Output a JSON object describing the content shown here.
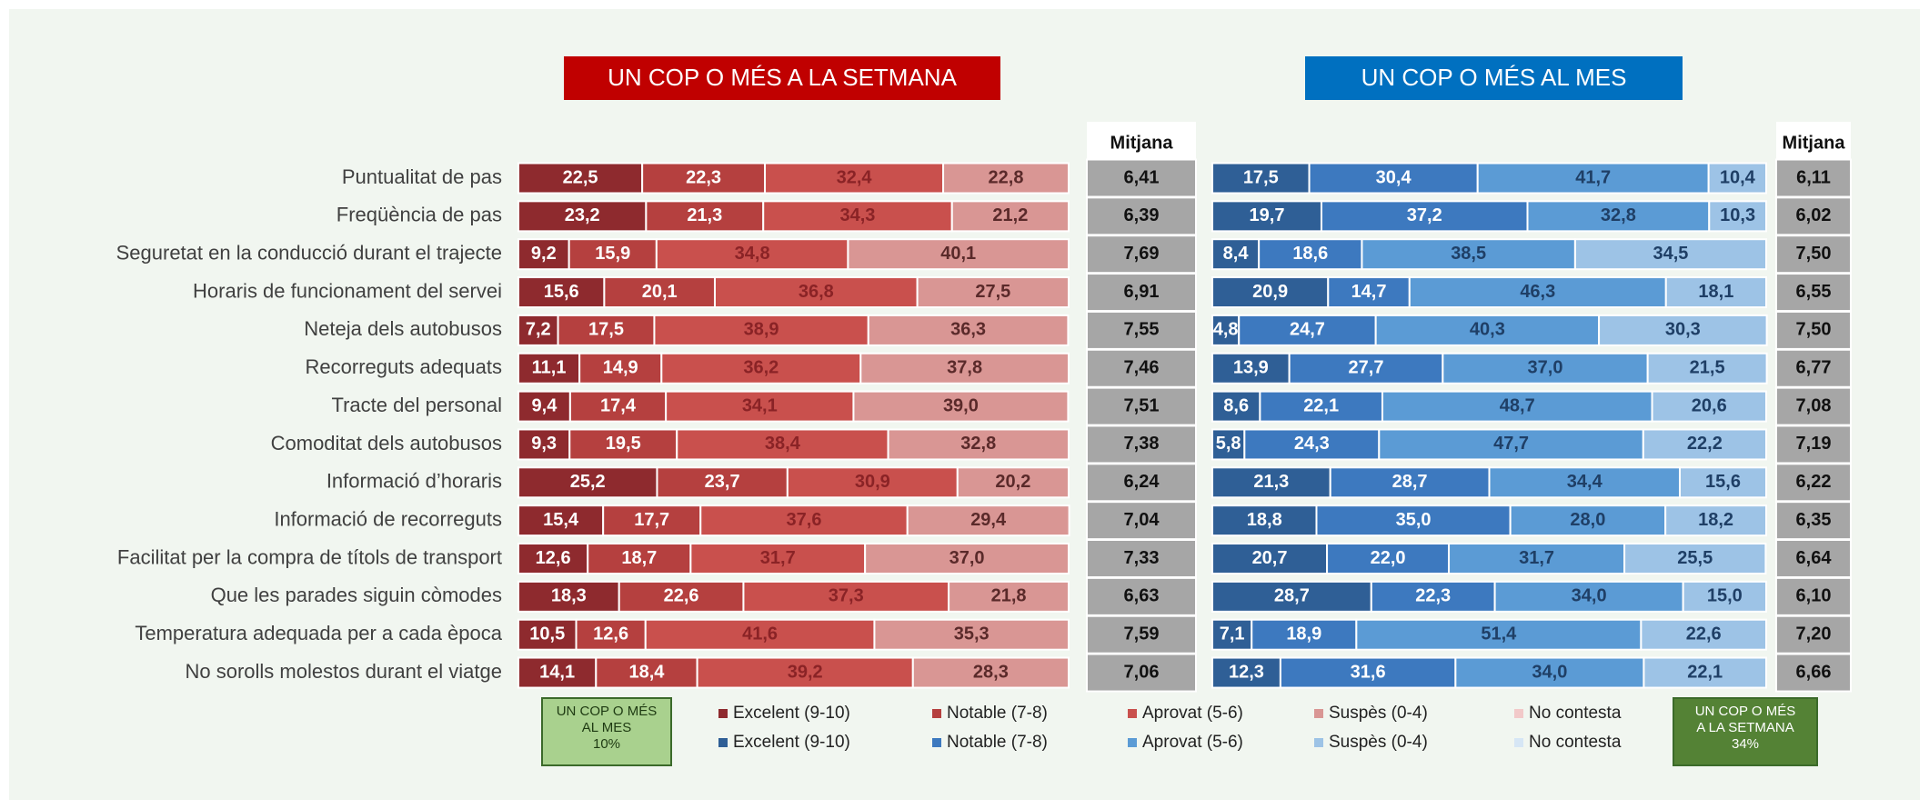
{
  "chart_data": [
    {
      "type": "stacked_bar_h",
      "title": "UN COP O MÉS A LA SETMANA",
      "title_color": "#c00000",
      "categories": [
        "Puntualitat de pas",
        "Freqüència de pas",
        "Seguretat en la conducció durant el trajecte",
        "Horaris de funcionament del servei",
        "Neteja dels autobusos",
        "Recorreguts adequats",
        "Tracte del personal",
        "Comoditat dels autobusos",
        "Informació d’horaris",
        "Informació de recorreguts",
        "Facilitat per la compra de títols de transport",
        "Que les parades siguin còmodes",
        "Temperatura adequada per a cada època",
        "No sorolls molestos durant el viatge"
      ],
      "xlim": [
        0,
        100
      ],
      "series": [
        {
          "name": "Excelent (9-10)",
          "color": "#8e2a2e",
          "label_color": "#ffffff",
          "values": [
            22.5,
            23.2,
            9.2,
            15.6,
            7.2,
            11.1,
            9.4,
            9.3,
            25.2,
            15.4,
            12.6,
            18.3,
            10.5,
            14.1
          ],
          "value_labels": [
            "22,5",
            "23,2",
            "9,2",
            "15,6",
            "7,2",
            "11,1",
            "9,4",
            "9,3",
            "25,2",
            "15,4",
            "12,6",
            "18,3",
            "10,5",
            "14,1"
          ]
        },
        {
          "name": "Notable (7-8)",
          "color": "#b5403f",
          "label_color": "#ffffff",
          "values": [
            22.3,
            21.3,
            15.9,
            20.1,
            17.5,
            14.9,
            17.4,
            19.5,
            23.7,
            17.7,
            18.7,
            22.6,
            12.6,
            18.4
          ],
          "value_labels": [
            "22,3",
            "21,3",
            "15,9",
            "20,1",
            "17,5",
            "14,9",
            "17,4",
            "19,5",
            "23,7",
            "17,7",
            "18,7",
            "22,6",
            "12,6",
            "18,4"
          ]
        },
        {
          "name": "Aprovat (5-6)",
          "color": "#c9504d",
          "label_color": "#8a2326",
          "values": [
            32.4,
            34.3,
            34.8,
            36.8,
            38.9,
            36.2,
            34.1,
            38.4,
            30.9,
            37.6,
            31.7,
            37.3,
            41.6,
            39.2
          ],
          "value_labels": [
            "32,4",
            "34,3",
            "34,8",
            "36,8",
            "38,9",
            "36,2",
            "34,1",
            "38,4",
            "30,9",
            "37,6",
            "31,7",
            "37,3",
            "41,6",
            "39,2"
          ]
        },
        {
          "name": "Suspès (0-4)",
          "color": "#d99694",
          "label_color": "#5a2a2a",
          "values": [
            22.8,
            21.2,
            40.1,
            27.5,
            36.3,
            37.8,
            39.0,
            32.8,
            20.2,
            29.4,
            37.0,
            21.8,
            35.3,
            28.3
          ],
          "value_labels": [
            "22,8",
            "21,2",
            "40,1",
            "27,5",
            "36,3",
            "37,8",
            "39,0",
            "32,8",
            "20,2",
            "29,4",
            "37,0",
            "21,8",
            "35,3",
            "28,3"
          ]
        },
        {
          "name": "No contesta",
          "color": "#f2c9c9",
          "label_color": "#5a2a2a",
          "values": [
            0,
            0,
            0,
            0,
            0,
            0,
            0,
            0,
            0,
            0,
            0,
            0,
            0,
            0
          ]
        }
      ],
      "mean_header": "Mitjana",
      "means": [
        6.41,
        6.39,
        7.69,
        6.91,
        7.55,
        7.46,
        7.51,
        7.38,
        6.24,
        7.04,
        7.33,
        6.63,
        7.59,
        7.06
      ],
      "mean_labels": [
        "6,41",
        "6,39",
        "7,69",
        "6,91",
        "7,55",
        "7,46",
        "7,51",
        "7,38",
        "6,24",
        "7,04",
        "7,33",
        "6,63",
        "7,59",
        "7,06"
      ],
      "annotation": {
        "text": [
          "UN COP O MÉS",
          "AL MES"
        ],
        "value": 10,
        "value_label": "10%",
        "color": "#a9d18e"
      }
    },
    {
      "type": "stacked_bar_h",
      "title": "UN COP O MÉS AL MES",
      "title_color": "#0070c0",
      "xlim": [
        0,
        100
      ],
      "series": [
        {
          "name": "Excelent (9-10)",
          "color": "#2f5f96",
          "label_color": "#ffffff",
          "values": [
            17.5,
            19.7,
            8.4,
            20.9,
            4.8,
            13.9,
            8.6,
            5.8,
            21.3,
            18.8,
            20.7,
            28.7,
            7.1,
            12.3
          ],
          "value_labels": [
            "17,5",
            "19,7",
            "8,4",
            "20,9",
            "4,8",
            "13,9",
            "8,6",
            "5,8",
            "21,3",
            "18,8",
            "20,7",
            "28,7",
            "7,1",
            "12,3"
          ]
        },
        {
          "name": "Notable (7-8)",
          "color": "#3d79bf",
          "label_color": "#ffffff",
          "values": [
            30.4,
            37.2,
            18.6,
            14.7,
            24.7,
            27.7,
            22.1,
            24.3,
            28.7,
            35.0,
            22.0,
            22.3,
            18.9,
            31.6
          ],
          "value_labels": [
            "30,4",
            "37,2",
            "18,6",
            "14,7",
            "24,7",
            "27,7",
            "22,1",
            "24,3",
            "28,7",
            "35,0",
            "22,0",
            "22,3",
            "18,9",
            "31,6"
          ]
        },
        {
          "name": "Aprovat (5-6)",
          "color": "#5b9bd5",
          "label_color": "#1f3f66",
          "values": [
            41.7,
            32.8,
            38.5,
            46.3,
            40.3,
            37.0,
            48.7,
            47.7,
            34.4,
            28.0,
            31.7,
            34.0,
            51.4,
            34.0
          ],
          "value_labels": [
            "41,7",
            "32,8",
            "38,5",
            "46,3",
            "40,3",
            "37,0",
            "48,7",
            "47,7",
            "34,4",
            "28,0",
            "31,7",
            "34,0",
            "51,4",
            "34,0"
          ]
        },
        {
          "name": "Suspès (0-4)",
          "color": "#9dc3e6",
          "label_color": "#1f3f66",
          "values": [
            10.4,
            10.3,
            34.5,
            18.1,
            30.3,
            21.5,
            20.6,
            22.2,
            15.6,
            18.2,
            25.5,
            15.0,
            22.6,
            22.1
          ],
          "value_labels": [
            "10,4",
            "10,3",
            "34,5",
            "18,1",
            "30,3",
            "21,5",
            "20,6",
            "22,2",
            "15,6",
            "18,2",
            "25,5",
            "15,0",
            "22,6",
            "22,1"
          ]
        },
        {
          "name": "No contesta",
          "color": "#d6e6f5",
          "label_color": "#1f3f66",
          "values": [
            0,
            0,
            0,
            0,
            0,
            0,
            0,
            0,
            0,
            0,
            0,
            0,
            0,
            0
          ]
        }
      ],
      "mean_header": "Mitjana",
      "means": [
        6.11,
        6.02,
        7.5,
        6.55,
        7.5,
        6.77,
        7.08,
        7.19,
        6.22,
        6.35,
        6.64,
        6.1,
        7.2,
        6.66
      ],
      "mean_labels": [
        "6,11",
        "6,02",
        "7,50",
        "6,55",
        "7,50",
        "6,77",
        "7,08",
        "7,19",
        "6,22",
        "6,35",
        "6,64",
        "6,10",
        "7,20",
        "6,66"
      ],
      "annotation": {
        "text": [
          "UN COP O MÉS",
          "A LA SETMANA"
        ],
        "value": 34,
        "value_label": "34%",
        "color": "#548235"
      }
    }
  ]
}
